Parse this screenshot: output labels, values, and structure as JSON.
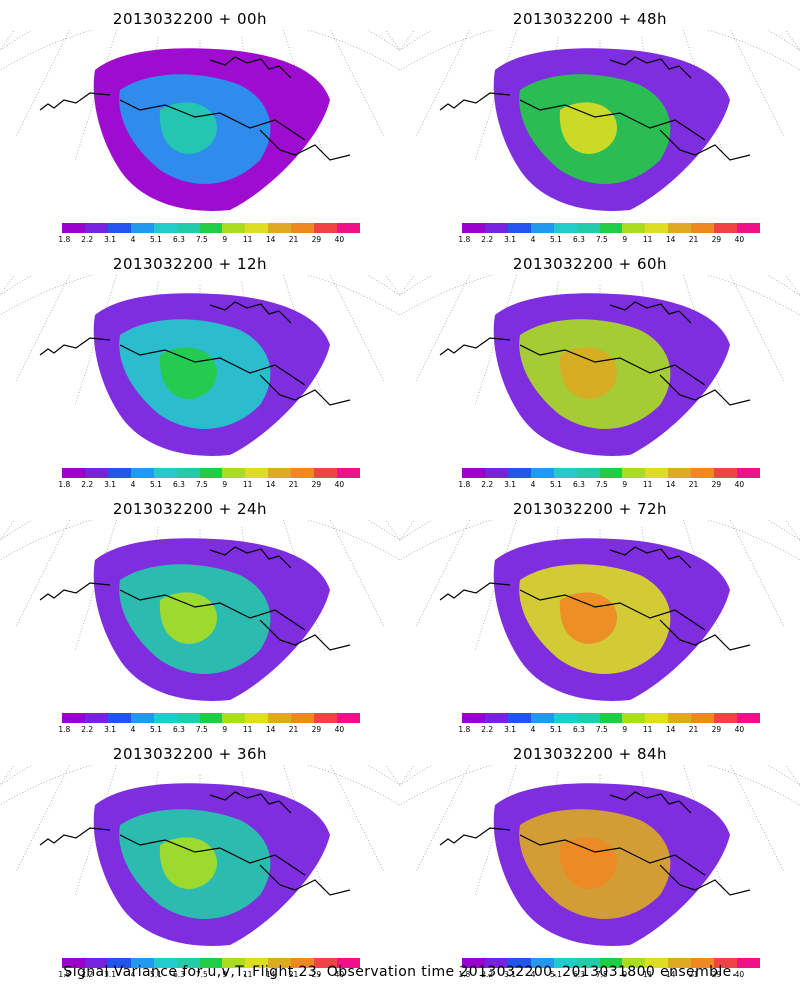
{
  "palette": [
    "#9900cc",
    "#7722dd",
    "#2255ee",
    "#2299ee",
    "#22cccc",
    "#22ccaa",
    "#22cc44",
    "#aadd22",
    "#dddd22",
    "#ddaa22",
    "#ee8822",
    "#ee4444",
    "#ee1188"
  ],
  "colorbar_labels": [
    "1.8",
    "2.2",
    "3.1",
    "4",
    "5.1",
    "6.3",
    "7.5",
    "9",
    "11",
    "14",
    "21",
    "29",
    "40"
  ],
  "panels": [
    {
      "title": "2013032200 + 00h",
      "intensity": 0
    },
    {
      "title": "2013032200 + 48h",
      "intensity": 3
    },
    {
      "title": "2013032200 + 12h",
      "intensity": 1
    },
    {
      "title": "2013032200 + 60h",
      "intensity": 4
    },
    {
      "title": "2013032200 + 24h",
      "intensity": 2
    },
    {
      "title": "2013032200 + 72h",
      "intensity": 5
    },
    {
      "title": "2013032200 + 36h",
      "intensity": 2
    },
    {
      "title": "2013032200 + 84h",
      "intensity": 6
    }
  ],
  "caption": "Signal Variance for u,v,T. Flight 23. Observation time 2013032200. 2013031800 ensemble."
}
